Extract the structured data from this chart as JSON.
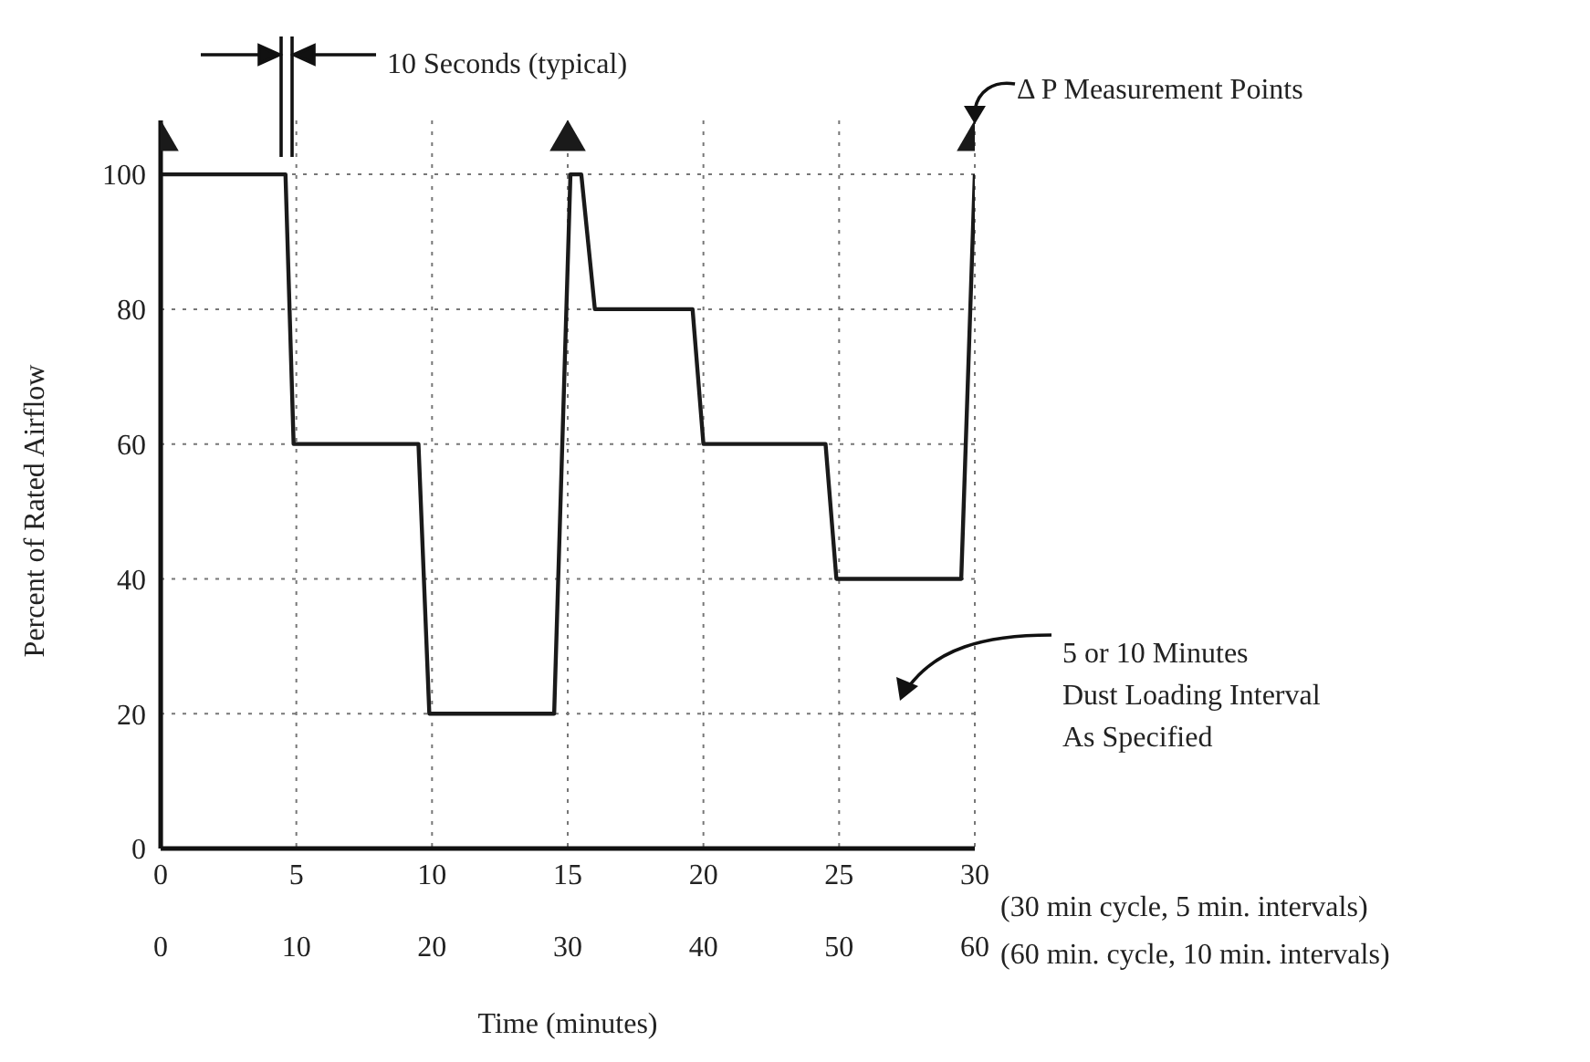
{
  "chart_data": {
    "type": "line",
    "xlabel": "Time (minutes)",
    "ylabel": "Percent of Rated Airflow",
    "series": [
      {
        "color": "#1a1a1a",
        "marker": "none",
        "line_style": "solid",
        "x": [
          0,
          0,
          4.6,
          4.9,
          9.5,
          9.9,
          14.5,
          15.1,
          15.5,
          16,
          19.6,
          20,
          24.5,
          24.9,
          29.5,
          30
        ],
        "values": [
          0,
          100,
          100,
          60,
          60,
          20,
          20,
          100,
          100,
          80,
          80,
          60,
          60,
          40,
          40,
          100
        ]
      },
      {
        "type": "scatter",
        "color": "#1a1a1a",
        "marker": "triangle",
        "x": [
          0,
          15,
          30
        ],
        "values": [
          105,
          105,
          105
        ]
      }
    ],
    "xlim": [
      0,
      30
    ],
    "xticks": [
      0,
      5,
      10,
      15,
      20,
      25,
      30
    ],
    "x2lim": [
      0,
      60
    ],
    "x2ticks": [
      0,
      10,
      20,
      30,
      40,
      50,
      60
    ],
    "ylim": [
      0,
      108
    ],
    "yticks": [
      0,
      20,
      40,
      60,
      80,
      100
    ],
    "grid": true,
    "annotations": [
      "10 Seconds (typical)",
      "Δ P Measurement Points",
      "5 or 10 Minutes\nDust Loading Interval\nAs Specified",
      "(30 min cycle, 5 min. intervals)",
      "(60 min. cycle, 10 min. intervals)"
    ]
  }
}
